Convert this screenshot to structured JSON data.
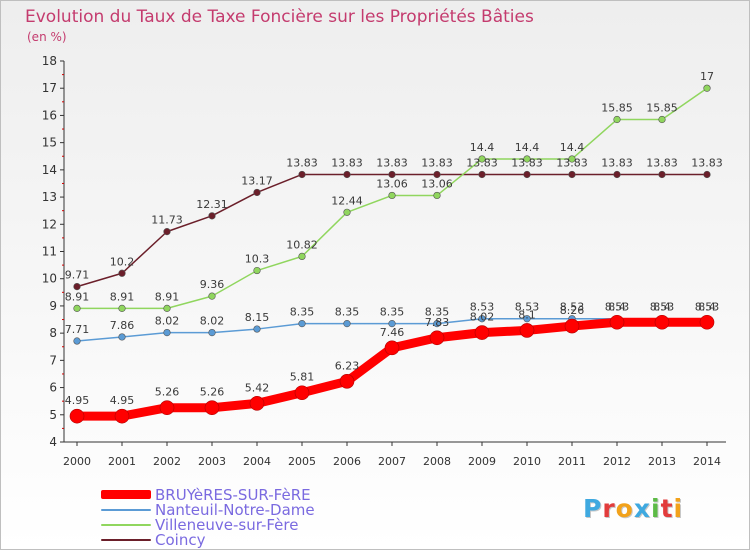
{
  "title": "Evolution du Taux de Taxe Foncière sur les Propriétés Bâties",
  "unit_label": "(en %)",
  "logo": {
    "letters": [
      "P",
      "r",
      "o",
      "x",
      "i",
      "t",
      "i"
    ],
    "colors": [
      "#3fa9e0",
      "#e23c3c",
      "#f2a21b",
      "#3fa9e0",
      "#5dbb46",
      "#e23c3c",
      "#f2a21b"
    ]
  },
  "chart_data": {
    "type": "line",
    "title": "Evolution du Taux de Taxe Foncière sur les Propriétés Bâties",
    "ylabel": "(en %)",
    "xlabel": "",
    "x": [
      "2000",
      "2001",
      "2002",
      "2003",
      "2004",
      "2005",
      "2006",
      "2007",
      "2008",
      "2009",
      "2010",
      "2011",
      "2012",
      "2013",
      "2014"
    ],
    "ylim": [
      4,
      18
    ],
    "yticks": [
      4,
      5,
      6,
      7,
      8,
      9,
      10,
      11,
      12,
      13,
      14,
      15,
      16,
      17,
      18
    ],
    "grid": false,
    "legend_position": "bottom-left",
    "series": [
      {
        "name": "BRUYèRES-SUR-FèRE",
        "color": "#ff0000",
        "values": [
          4.95,
          4.95,
          5.26,
          5.26,
          5.42,
          5.81,
          6.23,
          7.46,
          7.83,
          8.02,
          8.1,
          8.26,
          8.4,
          8.4,
          8.4
        ],
        "labels": [
          "4.95",
          "4.95",
          "5.26",
          "5.26",
          "5.42",
          "5.81",
          "6.23",
          "7.46",
          "7.83",
          "8.02",
          "8.1",
          "8.26",
          "8.4",
          "8.4",
          "8.4"
        ]
      },
      {
        "name": "Nanteuil-Notre-Dame",
        "color": "#5b9bd5",
        "values": [
          7.71,
          7.86,
          8.02,
          8.02,
          8.15,
          8.35,
          8.35,
          8.35,
          8.35,
          8.53,
          8.53,
          8.53,
          8.53,
          8.53,
          8.53
        ],
        "labels": [
          "7.71",
          "7.86",
          "8.02",
          "8.02",
          "8.15",
          "8.35",
          "8.35",
          "8.35",
          "8.35",
          "8.53",
          "8.53",
          "8.53",
          "8.53",
          "8.53",
          "8.53"
        ]
      },
      {
        "name": "Villeneuve-sur-Fère",
        "color": "#90d65e",
        "values": [
          8.91,
          8.91,
          8.91,
          9.36,
          10.3,
          10.82,
          12.44,
          13.06,
          13.06,
          14.4,
          14.4,
          14.4,
          15.85,
          15.85,
          17
        ],
        "labels": [
          "8.91",
          "8.91",
          "8.91",
          "9.36",
          "10.3",
          "10.82",
          "12.44",
          "13.06",
          "13.06",
          "14.4",
          "14.4",
          "14.4",
          "15.85",
          "15.85",
          "17"
        ]
      },
      {
        "name": "Coincy",
        "color": "#6b1f2a",
        "values": [
          9.71,
          10.2,
          11.73,
          12.31,
          13.17,
          13.83,
          13.83,
          13.83,
          13.83,
          13.83,
          13.83,
          13.83,
          13.83,
          13.83,
          13.83
        ],
        "labels": [
          "9.71",
          "10.2",
          "11.73",
          "12.31",
          "13.17",
          "13.83",
          "13.83",
          "13.83",
          "13.83",
          "13.83",
          "13.83",
          "13.83",
          "13.83",
          "13.83",
          "13.83"
        ]
      }
    ]
  }
}
